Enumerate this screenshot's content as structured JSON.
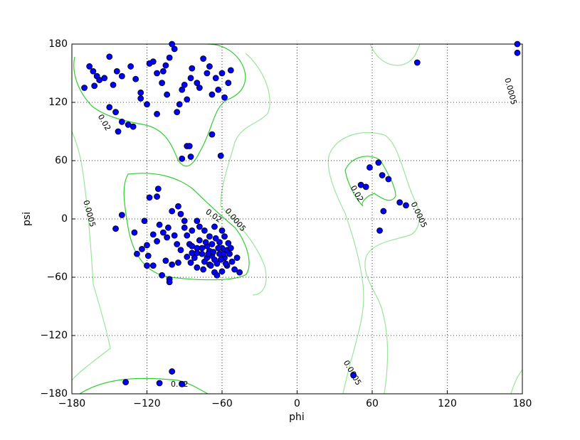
{
  "chart_data": {
    "type": "scatter",
    "xlabel": "phi",
    "ylabel": "psi",
    "xlim": [
      -180,
      180
    ],
    "ylim": [
      -180,
      180
    ],
    "xticks": [
      {
        "value": -180,
        "label": "−180"
      },
      {
        "value": -120,
        "label": "−120"
      },
      {
        "value": -60,
        "label": "−60"
      },
      0,
      60,
      120,
      180
    ],
    "yticks": [
      {
        "value": -180,
        "label": "−180"
      },
      {
        "value": -120,
        "label": "−120"
      },
      {
        "value": -60,
        "label": "−60"
      },
      0,
      60,
      120,
      180
    ],
    "grid": true,
    "color": "#0000ff",
    "contour_levels": [
      0.02,
      0.0005
    ],
    "contour_colors": [
      "#33cc33",
      "#99e699"
    ],
    "x": [
      -166,
      -163,
      -160,
      -158,
      -154,
      -170,
      -162,
      -150,
      -147,
      -144,
      -140,
      -133,
      -129,
      -125,
      -120,
      -118,
      -115,
      -112,
      -108,
      -107,
      -105,
      -104,
      -102,
      -100,
      -98,
      -96,
      -94,
      -92,
      -90,
      -88,
      -85,
      -84,
      -80,
      -78,
      -75,
      -72,
      -70,
      -68,
      -65,
      -63,
      -60,
      -58,
      -55,
      -53,
      -140,
      -135,
      -131,
      -125,
      -112,
      -145,
      -150,
      -143,
      -88,
      -86,
      -92,
      -85,
      -61,
      -68,
      -118,
      -112,
      -111,
      -140,
      -145,
      -130,
      -122,
      -115,
      -112,
      -120,
      -124,
      -119,
      -128,
      -110,
      -107,
      -103,
      -100,
      -104,
      -98,
      -96,
      -93,
      -90,
      -88,
      -86,
      -84,
      -82,
      -80,
      -78,
      -76,
      -74,
      -72,
      -70,
      -68,
      -66,
      -64,
      -62,
      -60,
      -58,
      -56,
      -54,
      -52,
      -50,
      -48,
      -46,
      -88,
      -85,
      -80,
      -75,
      -70,
      -66,
      -64,
      -60,
      -57,
      -62,
      -65,
      -70,
      -74,
      -78,
      -66,
      -60,
      -58,
      -55,
      -56,
      -68,
      -72,
      -76,
      -80,
      -84,
      -90,
      -93,
      -95,
      -84,
      -80,
      -100,
      -95,
      -105,
      -115,
      -102,
      -102,
      -108,
      -120,
      -63,
      -61,
      -67,
      -71,
      -59,
      -53,
      -69,
      -73,
      -137,
      -110,
      -100,
      -92,
      58,
      65,
      68,
      73,
      51,
      55,
      69,
      66,
      82,
      87,
      96,
      176,
      176,
      45
    ],
    "y": [
      157,
      152,
      147,
      143,
      145,
      135,
      137,
      167,
      138,
      152,
      147,
      157,
      144,
      124,
      118,
      160,
      162,
      150,
      140,
      152,
      158,
      128,
      166,
      180,
      175,
      110,
      118,
      133,
      138,
      123,
      145,
      155,
      140,
      135,
      165,
      150,
      157,
      128,
      145,
      133,
      150,
      125,
      140,
      153,
      100,
      97,
      95,
      130,
      108,
      110,
      115,
      90,
      75,
      75,
      62,
      64,
      65,
      87,
      22,
      23,
      31,
      4,
      -10,
      -14,
      -2,
      -16,
      -23,
      -27,
      -31,
      -38,
      -36,
      -6,
      -14,
      -9,
      8,
      -19,
      -17,
      -26,
      -32,
      -9,
      -17,
      -26,
      -35,
      -40,
      -30,
      -22,
      -36,
      -44,
      -28,
      -33,
      -38,
      -42,
      -46,
      -36,
      -30,
      -40,
      -48,
      -36,
      -44,
      -52,
      -40,
      -55,
      -39,
      -45,
      -50,
      -52,
      -47,
      -55,
      -58,
      -54,
      -46,
      -24,
      -20,
      -18,
      -12,
      -8,
      -8,
      -12,
      -18,
      -25,
      -32,
      -26,
      -40,
      -30,
      -35,
      -28,
      -2,
      5,
      13,
      -12,
      -2,
      -47,
      -45,
      -43,
      -48,
      -62,
      -65,
      -58,
      -48,
      -30,
      -42,
      -34,
      -36,
      -36,
      -30,
      -48,
      -24,
      -168,
      -169,
      -157,
      -170,
      53,
      58,
      45,
      41,
      35,
      33,
      8,
      -12,
      17,
      14,
      161,
      180,
      171,
      -161
    ]
  }
}
